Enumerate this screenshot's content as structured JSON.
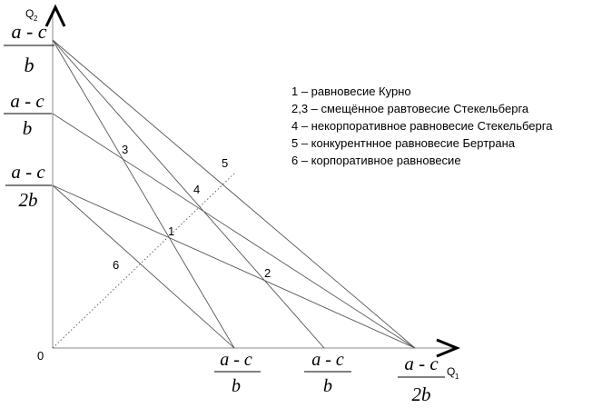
{
  "axes": {
    "y_label": "Q",
    "y_label_sub": "2",
    "x_label": "Q",
    "x_label_sub": "1",
    "origin": "0"
  },
  "fraction_labels": {
    "y_top": {
      "num": "a - c",
      "den": "b"
    },
    "y_mid": {
      "num": "a - c",
      "den": "b"
    },
    "y_low": {
      "num": "a - c",
      "den": "2b"
    },
    "x_first": {
      "num": "a - c",
      "den": "b"
    },
    "x_second": {
      "num": "a - c",
      "den": "b"
    },
    "x_far": {
      "num": "a - c",
      "den": "2b"
    }
  },
  "points": {
    "p1": "1",
    "p2": "2",
    "p3": "3",
    "p4": "4",
    "p5": "5",
    "p6": "6"
  },
  "legend": [
    "1 – равновесие Курно",
    "2,3 – смещённое равтовесие Стекельберга",
    "4 – некорпоративное равновесие Стекельберга",
    "5 – конкурентнное равновесие Бертрана",
    "6 – корпоративное равновесие"
  ],
  "colors": {
    "line": "#555555",
    "axis": "#888888",
    "text": "#000000"
  }
}
